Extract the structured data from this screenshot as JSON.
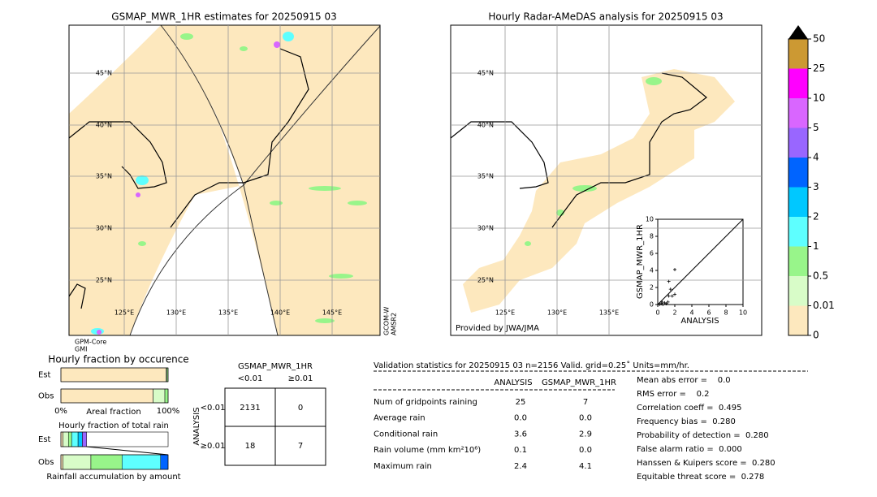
{
  "left_map": {
    "title": "GSMAP_MWR_1HR estimates for 20250915 03",
    "lat_labels": [
      "45°N",
      "40°N",
      "35°N",
      "30°N",
      "25°N"
    ],
    "lon_labels": [
      "125°E",
      "130°E",
      "135°E",
      "140°E",
      "145°E"
    ],
    "sensors_bottom": [
      "GPM-Core",
      "GMI"
    ],
    "sensors_right": [
      "GCOM-W",
      "AMSR2"
    ]
  },
  "right_map": {
    "title": "Hourly Radar-AMeDAS analysis for 20250915 03",
    "lat_labels": [
      "45°N",
      "40°N",
      "35°N",
      "30°N",
      "25°N"
    ],
    "lon_labels": [
      "125°E",
      "130°E",
      "135°E"
    ],
    "credit": "Provided by JWA/JMA"
  },
  "colorbar": {
    "levels": [
      0,
      0.01,
      0.5,
      1,
      2,
      3,
      4,
      5,
      10,
      25,
      50
    ],
    "colors": [
      "#fde8be",
      "#d8fcc8",
      "#98f58a",
      "#5effff",
      "#00c8ff",
      "#0064ff",
      "#9966ff",
      "#d966ff",
      "#ff00ff",
      "#cc9933"
    ],
    "extend_color": "#000000"
  },
  "scatter": {
    "type": "scatter",
    "xlabel": "ANALYSIS",
    "ylabel": "GSMAP_MWR_1HR",
    "xlim": [
      0,
      10
    ],
    "ylim": [
      0,
      10
    ],
    "xticks": [
      0,
      2,
      4,
      6,
      8,
      10
    ],
    "yticks": [
      0,
      2,
      4,
      6,
      8,
      10
    ],
    "x": [
      0,
      0.2,
      0.4,
      0.6,
      0.8,
      1.0,
      1.2,
      1.3,
      1.5,
      1.7,
      2.0,
      2.0,
      1.3,
      0.5
    ],
    "y": [
      0,
      0,
      0.1,
      0,
      0.2,
      0.1,
      0.3,
      1.0,
      1.8,
      1.0,
      1.2,
      4.1,
      2.7,
      0.3
    ]
  },
  "occurrence": {
    "title": "Hourly fraction by occurence",
    "rows": [
      "Est",
      "Obs"
    ],
    "xlabel": "Areal fraction",
    "xlim": [
      0,
      100
    ],
    "xticks": [
      {
        "value": 0,
        "label": "0%"
      },
      {
        "value": 100,
        "label": "100%"
      }
    ],
    "series": [
      {
        "color": "#fde8be",
        "values": [
          98,
          86
        ]
      },
      {
        "color": "#d8fcc8",
        "values": [
          1,
          11
        ]
      },
      {
        "color": "#98f58a",
        "values": [
          1,
          3
        ]
      }
    ]
  },
  "total_rain": {
    "title": "Hourly fraction of total rain",
    "rows": [
      "Est",
      "Obs"
    ],
    "xlabel": "Rainfall accumulation by amount",
    "xlim": [
      0,
      100
    ],
    "series": [
      {
        "color": "#fde8be",
        "values": [
          2,
          2
        ]
      },
      {
        "color": "#d8fcc8",
        "values": [
          5,
          26
        ]
      },
      {
        "color": "#98f58a",
        "values": [
          3,
          29
        ]
      },
      {
        "color": "#5effff",
        "values": [
          6,
          36
        ]
      },
      {
        "color": "#00c8ff",
        "values": [
          4,
          0
        ]
      },
      {
        "color": "#9966ff",
        "values": [
          4,
          0
        ]
      },
      {
        "color": "#0064ff",
        "values": [
          0,
          7
        ]
      }
    ]
  },
  "contingency": {
    "title": "GSMAP_MWR_1HR",
    "col_labels": [
      "<0.01",
      "≥0.01"
    ],
    "row_title": "ANALYSIS",
    "row_labels": [
      "<0.01",
      "≥0.01"
    ],
    "cells": [
      [
        "2131",
        "0"
      ],
      [
        "18",
        "7"
      ]
    ]
  },
  "validation": {
    "header": "Validation statistics for 20250915 03  n=2156 Valid. grid=0.25˚ Units=mm/hr.",
    "columns": [
      "ANALYSIS",
      "GSMAP_MWR_1HR"
    ],
    "rows": [
      [
        "Num of gridpoints raining",
        "25",
        "7"
      ],
      [
        "Average rain",
        "0.0",
        "0.0"
      ],
      [
        "Conditional rain",
        "3.6",
        "2.9"
      ],
      [
        "Rain volume (mm km²10⁶)",
        "0.1",
        "0.0"
      ],
      [
        "Maximum rain",
        "2.4",
        "4.1"
      ]
    ],
    "scores": [
      "Mean abs error =    0.0",
      "RMS error =    0.2",
      "Correlation coeff =  0.495",
      "Frequency bias =  0.280",
      "Probability of detection =  0.280",
      "False alarm ratio =  0.000",
      "Hanssen & Kuipers score =  0.280",
      "Equitable threat score =  0.278"
    ]
  }
}
